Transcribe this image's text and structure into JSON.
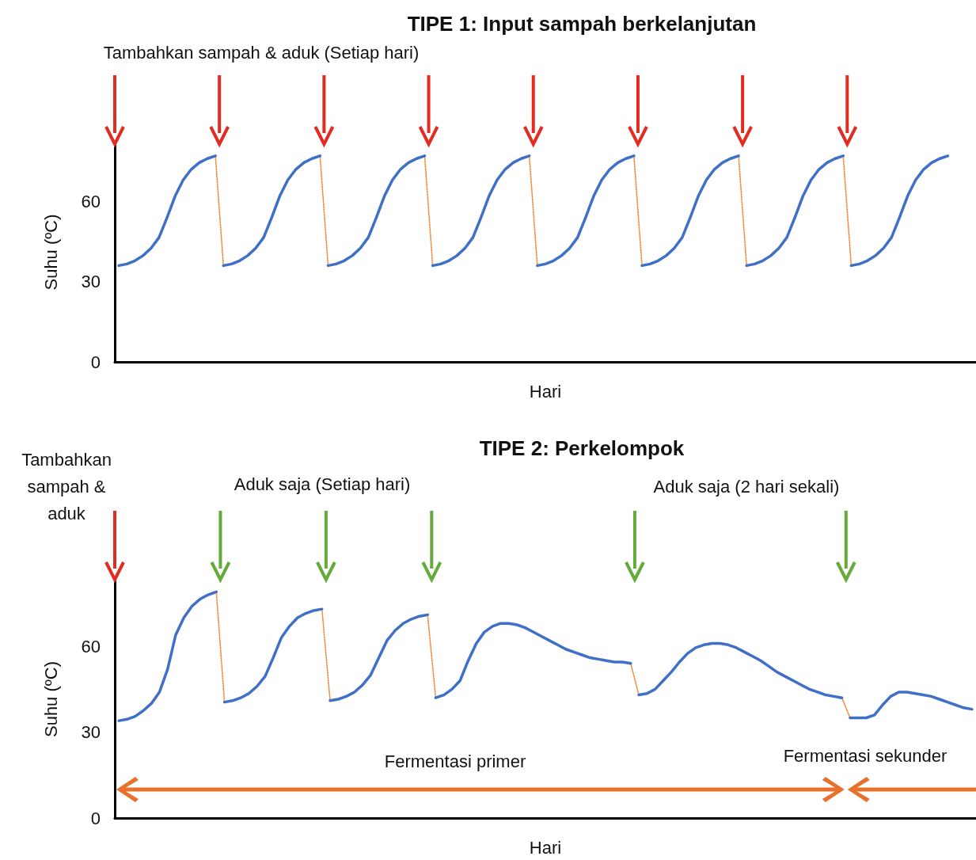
{
  "chart_data": [
    {
      "type": "line",
      "title": "TIPE 1: Input sampah berkelanjutan",
      "xlabel": "Hari",
      "ylabel": "Suhu (ºC)",
      "annotations": [
        "Tambahkan sampah & aduk (Setiap hari)"
      ],
      "categories": [
        null,
        null,
        null,
        null,
        null,
        null,
        null,
        null,
        null,
        null,
        null,
        null,
        null,
        null,
        null,
        null,
        null,
        null,
        null,
        null,
        null,
        null,
        null,
        null,
        null,
        null,
        null,
        null,
        null,
        null,
        null,
        null,
        null,
        null,
        null,
        null,
        null,
        null,
        null,
        null,
        null,
        null,
        null,
        null,
        null,
        null,
        null,
        null,
        null,
        null,
        null,
        null,
        null,
        null,
        null,
        null,
        null,
        null,
        null,
        null,
        null,
        null,
        null,
        null,
        null,
        null,
        null,
        null,
        null,
        null,
        null,
        null,
        null,
        null,
        null,
        null,
        null,
        null,
        null,
        null,
        null,
        null,
        null,
        null,
        null,
        null,
        null,
        null,
        null,
        null,
        null,
        null,
        null,
        null,
        null,
        null,
        null,
        null,
        null,
        null,
        null,
        null,
        null,
        null,
        null,
        null,
        null
      ],
      "ylim": [
        0,
        82
      ],
      "yticks": [
        0,
        30,
        60
      ],
      "tick_labels": "y",
      "marker": "none",
      "series": [
        {
          "color": "#3f6fc6",
          "line_style": "solid",
          "values": [
            36,
            36.6,
            37.8,
            39.7,
            42.5,
            46.5,
            54,
            62,
            68,
            72,
            74.5,
            76,
            77,
            null,
            null,
            null,
            null,
            null,
            null,
            null,
            null,
            null,
            null,
            null,
            null,
            null,
            null,
            null,
            null,
            null,
            null,
            null,
            null,
            null,
            null,
            null,
            null,
            null,
            null,
            null,
            null,
            null,
            null,
            null,
            null,
            null,
            null,
            null,
            null,
            null,
            null,
            null,
            null,
            null,
            null,
            null,
            null,
            null,
            null,
            null,
            null,
            null,
            null,
            null,
            null,
            null,
            null,
            null,
            null,
            null,
            null,
            null,
            null,
            null,
            null,
            null,
            null,
            null,
            null,
            null,
            null,
            null,
            null,
            null,
            null,
            null,
            null,
            null,
            null,
            null,
            null,
            null,
            null,
            null,
            null,
            null,
            null,
            null,
            null,
            null,
            null,
            null,
            null,
            null,
            null,
            null,
            null
          ]
        },
        {
          "color": "#3f6fc6",
          "line_style": "solid",
          "values": [
            null,
            null,
            null,
            null,
            null,
            null,
            null,
            null,
            null,
            null,
            null,
            null,
            null,
            36,
            36.6,
            37.8,
            39.7,
            42.5,
            46.5,
            54,
            62,
            68,
            72,
            74.5,
            76,
            77,
            null,
            null,
            null,
            null,
            null,
            null,
            null,
            null,
            null,
            null,
            null,
            null,
            null,
            null,
            null,
            null,
            null,
            null,
            null,
            null,
            null,
            null,
            null,
            null,
            null,
            null,
            null,
            null,
            null,
            null,
            null,
            null,
            null,
            null,
            null,
            null,
            null,
            null,
            null,
            null,
            null,
            null,
            null,
            null,
            null,
            null,
            null,
            null,
            null,
            null,
            null,
            null,
            null,
            null,
            null,
            null,
            null,
            null,
            null,
            null,
            null,
            null,
            null,
            null,
            null,
            null,
            null,
            null,
            null,
            null,
            null,
            null,
            null,
            null,
            null,
            null,
            null,
            null,
            null,
            null,
            null
          ]
        },
        {
          "color": "#3f6fc6",
          "line_style": "solid",
          "values": [
            null,
            null,
            null,
            null,
            null,
            null,
            null,
            null,
            null,
            null,
            null,
            null,
            null,
            null,
            null,
            null,
            null,
            null,
            null,
            null,
            null,
            null,
            null,
            null,
            null,
            null,
            36,
            36.6,
            37.8,
            39.7,
            42.5,
            46.5,
            54,
            62,
            68,
            72,
            74.5,
            76,
            77,
            null,
            null,
            null,
            null,
            null,
            null,
            null,
            null,
            null,
            null,
            null,
            null,
            null,
            null,
            null,
            null,
            null,
            null,
            null,
            null,
            null,
            null,
            null,
            null,
            null,
            null,
            null,
            null,
            null,
            null,
            null,
            null,
            null,
            null,
            null,
            null,
            null,
            null,
            null,
            null,
            null,
            null,
            null,
            null,
            null,
            null,
            null,
            null,
            null,
            null,
            null,
            null,
            null,
            null,
            null,
            null,
            null,
            null,
            null,
            null,
            null,
            null,
            null,
            null,
            null,
            null,
            null,
            null
          ]
        },
        {
          "color": "#3f6fc6",
          "line_style": "solid",
          "values": [
            null,
            null,
            null,
            null,
            null,
            null,
            null,
            null,
            null,
            null,
            null,
            null,
            null,
            null,
            null,
            null,
            null,
            null,
            null,
            null,
            null,
            null,
            null,
            null,
            null,
            null,
            null,
            null,
            null,
            null,
            null,
            null,
            null,
            null,
            null,
            null,
            null,
            null,
            null,
            36,
            36.6,
            37.8,
            39.7,
            42.5,
            46.5,
            54,
            62,
            68,
            72,
            74.5,
            76,
            77,
            null,
            null,
            null,
            null,
            null,
            null,
            null,
            null,
            null,
            null,
            null,
            null,
            null,
            null,
            null,
            null,
            null,
            null,
            null,
            null,
            null,
            null,
            null,
            null,
            null,
            null,
            null,
            null,
            null,
            null,
            null,
            null,
            null,
            null,
            null,
            null,
            null,
            null,
            null,
            null,
            null,
            null,
            null,
            null,
            null,
            null,
            null,
            null,
            null,
            null,
            null,
            null,
            null,
            null,
            null
          ]
        },
        {
          "color": "#3f6fc6",
          "line_style": "solid",
          "values": [
            null,
            null,
            null,
            null,
            null,
            null,
            null,
            null,
            null,
            null,
            null,
            null,
            null,
            null,
            null,
            null,
            null,
            null,
            null,
            null,
            null,
            null,
            null,
            null,
            null,
            null,
            null,
            null,
            null,
            null,
            null,
            null,
            null,
            null,
            null,
            null,
            null,
            null,
            null,
            null,
            null,
            null,
            null,
            null,
            null,
            null,
            null,
            null,
            null,
            null,
            null,
            null,
            36,
            36.6,
            37.8,
            39.7,
            42.5,
            46.5,
            54,
            62,
            68,
            72,
            74.5,
            76,
            77,
            null,
            null,
            null,
            null,
            null,
            null,
            null,
            null,
            null,
            null,
            null,
            null,
            null,
            null,
            null,
            null,
            null,
            null,
            null,
            null,
            null,
            null,
            null,
            null,
            null,
            null,
            null,
            null,
            null,
            null,
            null,
            null,
            null,
            null,
            null,
            null,
            null,
            null,
            null,
            null,
            null,
            null
          ]
        },
        {
          "color": "#3f6fc6",
          "line_style": "solid",
          "values": [
            null,
            null,
            null,
            null,
            null,
            null,
            null,
            null,
            null,
            null,
            null,
            null,
            null,
            null,
            null,
            null,
            null,
            null,
            null,
            null,
            null,
            null,
            null,
            null,
            null,
            null,
            null,
            null,
            null,
            null,
            null,
            null,
            null,
            null,
            null,
            null,
            null,
            null,
            null,
            null,
            null,
            null,
            null,
            null,
            null,
            null,
            null,
            null,
            null,
            null,
            null,
            null,
            null,
            null,
            null,
            null,
            null,
            null,
            null,
            null,
            null,
            null,
            null,
            null,
            null,
            36,
            36.6,
            37.8,
            39.7,
            42.5,
            46.5,
            54,
            62,
            68,
            72,
            74.5,
            76,
            77,
            null,
            null,
            null,
            null,
            null,
            null,
            null,
            null,
            null,
            null,
            null,
            null,
            null,
            null,
            null,
            null,
            null,
            null,
            null,
            null,
            null,
            null,
            null,
            null,
            null,
            null,
            null,
            null,
            null
          ]
        },
        {
          "color": "#3f6fc6",
          "line_style": "solid",
          "values": [
            null,
            null,
            null,
            null,
            null,
            null,
            null,
            null,
            null,
            null,
            null,
            null,
            null,
            null,
            null,
            null,
            null,
            null,
            null,
            null,
            null,
            null,
            null,
            null,
            null,
            null,
            null,
            null,
            null,
            null,
            null,
            null,
            null,
            null,
            null,
            null,
            null,
            null,
            null,
            null,
            null,
            null,
            null,
            null,
            null,
            null,
            null,
            null,
            null,
            null,
            null,
            null,
            null,
            null,
            null,
            null,
            null,
            null,
            null,
            null,
            null,
            null,
            null,
            null,
            null,
            null,
            null,
            null,
            null,
            null,
            null,
            null,
            null,
            null,
            null,
            null,
            null,
            null,
            36,
            36.6,
            37.8,
            39.7,
            42.5,
            46.5,
            54,
            62,
            68,
            72,
            74.5,
            76,
            77,
            null,
            null,
            null,
            null,
            null,
            null,
            null,
            null,
            null,
            null,
            null,
            null,
            null,
            null,
            null,
            null
          ]
        },
        {
          "color": "#3f6fc6",
          "line_style": "solid",
          "values": [
            null,
            null,
            null,
            null,
            null,
            null,
            null,
            null,
            null,
            null,
            null,
            null,
            null,
            null,
            null,
            null,
            null,
            null,
            null,
            null,
            null,
            null,
            null,
            null,
            null,
            null,
            null,
            null,
            null,
            null,
            null,
            null,
            null,
            null,
            null,
            null,
            null,
            null,
            null,
            null,
            null,
            null,
            null,
            null,
            null,
            null,
            null,
            null,
            null,
            null,
            null,
            null,
            null,
            null,
            null,
            null,
            null,
            null,
            null,
            null,
            null,
            null,
            null,
            null,
            null,
            null,
            null,
            null,
            null,
            null,
            null,
            null,
            null,
            null,
            null,
            null,
            null,
            null,
            null,
            null,
            null,
            null,
            null,
            null,
            null,
            null,
            null,
            null,
            null,
            null,
            null,
            36,
            36.6,
            37.8,
            39.7,
            42.5,
            46.5,
            54,
            62,
            68,
            72,
            74.5,
            76,
            77,
            null,
            null,
            null
          ]
        },
        {
          "color": "#f08a3c",
          "line_style": "dotted",
          "values": [
            null,
            null,
            null,
            null,
            null,
            null,
            null,
            null,
            null,
            null,
            null,
            null,
            77,
            36,
            null,
            null,
            null,
            null,
            null,
            null,
            null,
            null,
            null,
            null,
            null,
            77,
            36,
            null,
            null,
            null,
            null,
            null,
            null,
            null,
            null,
            null,
            null,
            null,
            77,
            36,
            null,
            null,
            null,
            null,
            null,
            null,
            null,
            null,
            null,
            null,
            null,
            77,
            36,
            null,
            null,
            null,
            null,
            null,
            null,
            null,
            null,
            null,
            null,
            null,
            77,
            36,
            null,
            null,
            null,
            null,
            null,
            null,
            null,
            null,
            null,
            null,
            null,
            77,
            36,
            null,
            null,
            null,
            null,
            null,
            null,
            null,
            null,
            null,
            null,
            null,
            77,
            36,
            null,
            null,
            null,
            null,
            null,
            null,
            null,
            null,
            null,
            null,
            null,
            null,
            null,
            null,
            null
          ]
        }
      ]
    },
    {
      "type": "line",
      "title": "TIPE 2: Perkelompok",
      "xlabel": "Hari",
      "ylabel": "Suhu (ºC)",
      "annotations": [
        "Tambahkan sampah & aduk",
        "Aduk saja (Setiap hari)",
        "Aduk saja (2 hari sekali)",
        "Fermentasi primer",
        "Fermentasi sekunder"
      ],
      "categories": [
        null,
        null,
        null,
        null,
        null,
        null,
        null,
        null,
        null,
        null,
        null,
        null,
        null,
        null,
        null,
        null,
        null,
        null,
        null,
        null,
        null,
        null,
        null,
        null,
        null,
        null,
        null,
        null,
        null,
        null,
        null,
        null,
        null,
        null,
        null,
        null,
        null,
        null,
        null,
        null,
        null,
        null,
        null,
        null,
        null,
        null,
        null,
        null,
        null,
        null,
        null,
        null,
        null,
        null,
        null,
        null,
        null,
        null,
        null,
        null,
        null,
        null,
        null,
        null,
        null,
        null,
        null,
        null,
        null,
        null,
        null,
        null,
        null,
        null,
        null,
        null,
        null,
        null,
        null,
        null,
        null,
        null,
        null,
        null,
        null,
        null,
        null,
        null,
        null,
        null,
        null,
        null,
        null,
        null,
        null,
        null,
        null,
        null,
        null,
        null,
        null,
        null,
        null,
        null,
        null,
        null
      ],
      "ylim": [
        0,
        83
      ],
      "yticks": [
        0,
        30,
        60
      ],
      "tick_labels": "y",
      "marker": "none",
      "series": [
        {
          "color": "#3f6fc6",
          "line_style": "solid",
          "values": [
            34,
            34.5,
            35.5,
            37.5,
            40,
            44,
            52,
            64,
            70,
            74,
            76.5,
            78,
            79,
            null,
            null,
            null,
            null,
            null,
            null,
            null,
            null,
            null,
            null,
            null,
            null,
            null,
            null,
            null,
            null,
            null,
            null,
            null,
            null,
            null,
            null,
            null,
            null,
            null,
            null,
            null,
            null,
            null,
            null,
            null,
            null,
            null,
            null,
            null,
            null,
            null,
            null,
            null,
            null,
            null,
            null,
            null,
            null,
            null,
            null,
            null,
            null,
            null,
            null,
            null,
            null,
            null,
            null,
            null,
            null,
            null,
            null,
            null,
            null,
            null,
            null,
            null,
            null,
            null,
            null,
            null,
            null,
            null,
            null,
            null,
            null,
            null,
            null,
            null,
            null,
            null,
            null,
            null,
            null,
            null,
            null,
            null,
            null,
            null,
            null,
            null,
            null,
            null,
            null,
            null,
            null,
            null
          ]
        },
        {
          "color": "#3f6fc6",
          "line_style": "solid",
          "values": [
            null,
            null,
            null,
            null,
            null,
            null,
            null,
            null,
            null,
            null,
            null,
            null,
            null,
            40.5,
            41,
            42,
            43.5,
            46,
            49.5,
            56,
            63,
            67,
            70,
            71.5,
            72.5,
            73,
            null,
            null,
            null,
            null,
            null,
            null,
            null,
            null,
            null,
            null,
            null,
            null,
            null,
            null,
            null,
            null,
            null,
            null,
            null,
            null,
            null,
            null,
            null,
            null,
            null,
            null,
            null,
            null,
            null,
            null,
            null,
            null,
            null,
            null,
            null,
            null,
            null,
            null,
            null,
            null,
            null,
            null,
            null,
            null,
            null,
            null,
            null,
            null,
            null,
            null,
            null,
            null,
            null,
            null,
            null,
            null,
            null,
            null,
            null,
            null,
            null,
            null,
            null,
            null,
            null,
            null,
            null,
            null,
            null,
            null,
            null,
            null,
            null,
            null,
            null,
            null,
            null,
            null,
            null,
            null
          ]
        },
        {
          "color": "#3f6fc6",
          "line_style": "solid",
          "values": [
            null,
            null,
            null,
            null,
            null,
            null,
            null,
            null,
            null,
            null,
            null,
            null,
            null,
            null,
            null,
            null,
            null,
            null,
            null,
            null,
            null,
            null,
            null,
            null,
            null,
            null,
            41,
            41.5,
            42.5,
            44,
            46.5,
            50,
            56,
            62,
            65.5,
            68,
            69.5,
            70.5,
            71,
            null,
            null,
            null,
            null,
            null,
            null,
            null,
            null,
            null,
            null,
            null,
            null,
            null,
            null,
            null,
            null,
            null,
            null,
            null,
            null,
            null,
            null,
            null,
            null,
            null,
            null,
            null,
            null,
            null,
            null,
            null,
            null,
            null,
            null,
            null,
            null,
            null,
            null,
            null,
            null,
            null,
            null,
            null,
            null,
            null,
            null,
            null,
            null,
            null,
            null,
            null,
            null,
            null,
            null,
            null,
            null,
            null,
            null,
            null,
            null,
            null,
            null,
            null,
            null,
            null,
            null,
            null
          ]
        },
        {
          "color": "#3f6fc6",
          "line_style": "solid",
          "values": [
            null,
            null,
            null,
            null,
            null,
            null,
            null,
            null,
            null,
            null,
            null,
            null,
            null,
            null,
            null,
            null,
            null,
            null,
            null,
            null,
            null,
            null,
            null,
            null,
            null,
            null,
            null,
            null,
            null,
            null,
            null,
            null,
            null,
            null,
            null,
            null,
            null,
            null,
            null,
            42,
            43,
            45,
            48,
            55,
            61,
            65,
            67,
            68,
            68,
            67.5,
            66.5,
            65,
            63.5,
            62,
            60.5,
            59,
            58,
            57,
            56,
            55.5,
            55,
            54.5,
            54.5,
            54,
            null,
            null,
            null,
            null,
            null,
            null,
            null,
            null,
            null,
            null,
            null,
            null,
            null,
            null,
            null,
            null,
            null,
            null,
            null,
            null,
            null,
            null,
            null,
            null,
            null,
            null,
            null,
            null,
            null,
            null,
            null,
            null,
            null,
            null,
            null,
            null,
            null,
            null,
            null,
            null,
            null,
            null
          ]
        },
        {
          "color": "#3f6fc6",
          "line_style": "solid",
          "values": [
            null,
            null,
            null,
            null,
            null,
            null,
            null,
            null,
            null,
            null,
            null,
            null,
            null,
            null,
            null,
            null,
            null,
            null,
            null,
            null,
            null,
            null,
            null,
            null,
            null,
            null,
            null,
            null,
            null,
            null,
            null,
            null,
            null,
            null,
            null,
            null,
            null,
            null,
            null,
            null,
            null,
            null,
            null,
            null,
            null,
            null,
            null,
            null,
            null,
            null,
            null,
            null,
            null,
            null,
            null,
            null,
            null,
            null,
            null,
            null,
            null,
            null,
            null,
            null,
            43,
            43.5,
            45,
            48,
            51,
            54.5,
            57.5,
            59.5,
            60.5,
            61,
            61,
            60.5,
            59.5,
            58,
            56.5,
            55,
            53,
            51,
            49.5,
            48,
            46.5,
            45,
            44,
            43,
            42.5,
            42,
            null,
            null,
            null,
            null,
            null,
            null,
            null,
            null,
            null,
            null,
            null,
            null,
            null,
            null,
            null,
            null
          ]
        },
        {
          "color": "#3f6fc6",
          "line_style": "solid",
          "values": [
            null,
            null,
            null,
            null,
            null,
            null,
            null,
            null,
            null,
            null,
            null,
            null,
            null,
            null,
            null,
            null,
            null,
            null,
            null,
            null,
            null,
            null,
            null,
            null,
            null,
            null,
            null,
            null,
            null,
            null,
            null,
            null,
            null,
            null,
            null,
            null,
            null,
            null,
            null,
            null,
            null,
            null,
            null,
            null,
            null,
            null,
            null,
            null,
            null,
            null,
            null,
            null,
            null,
            null,
            null,
            null,
            null,
            null,
            null,
            null,
            null,
            null,
            null,
            null,
            null,
            null,
            null,
            null,
            null,
            null,
            null,
            null,
            null,
            null,
            null,
            null,
            null,
            null,
            null,
            null,
            null,
            null,
            null,
            null,
            null,
            null,
            null,
            null,
            null,
            null,
            35,
            35,
            35,
            36,
            39.5,
            42.5,
            44,
            44,
            43.5,
            43,
            42.5,
            41.5,
            40.5,
            39.5,
            38.5,
            38
          ]
        },
        {
          "color": "#f08a3c",
          "line_style": "dotted",
          "values": [
            null,
            null,
            null,
            null,
            null,
            null,
            null,
            null,
            null,
            null,
            null,
            null,
            79,
            40.5,
            null,
            null,
            null,
            null,
            null,
            null,
            null,
            null,
            null,
            null,
            null,
            73,
            41,
            null,
            null,
            null,
            null,
            null,
            null,
            null,
            null,
            null,
            null,
            null,
            71,
            42,
            null,
            null,
            null,
            null,
            null,
            null,
            null,
            null,
            null,
            null,
            null,
            null,
            null,
            null,
            null,
            null,
            null,
            null,
            null,
            null,
            null,
            null,
            null,
            54,
            43,
            null,
            null,
            null,
            null,
            null,
            null,
            null,
            null,
            null,
            null,
            null,
            null,
            null,
            null,
            null,
            null,
            null,
            null,
            null,
            null,
            null,
            null,
            null,
            null,
            42,
            35,
            null,
            null,
            null,
            null,
            null,
            null,
            null,
            null,
            null,
            null,
            null,
            null,
            null,
            null,
            null
          ]
        }
      ]
    }
  ]
}
